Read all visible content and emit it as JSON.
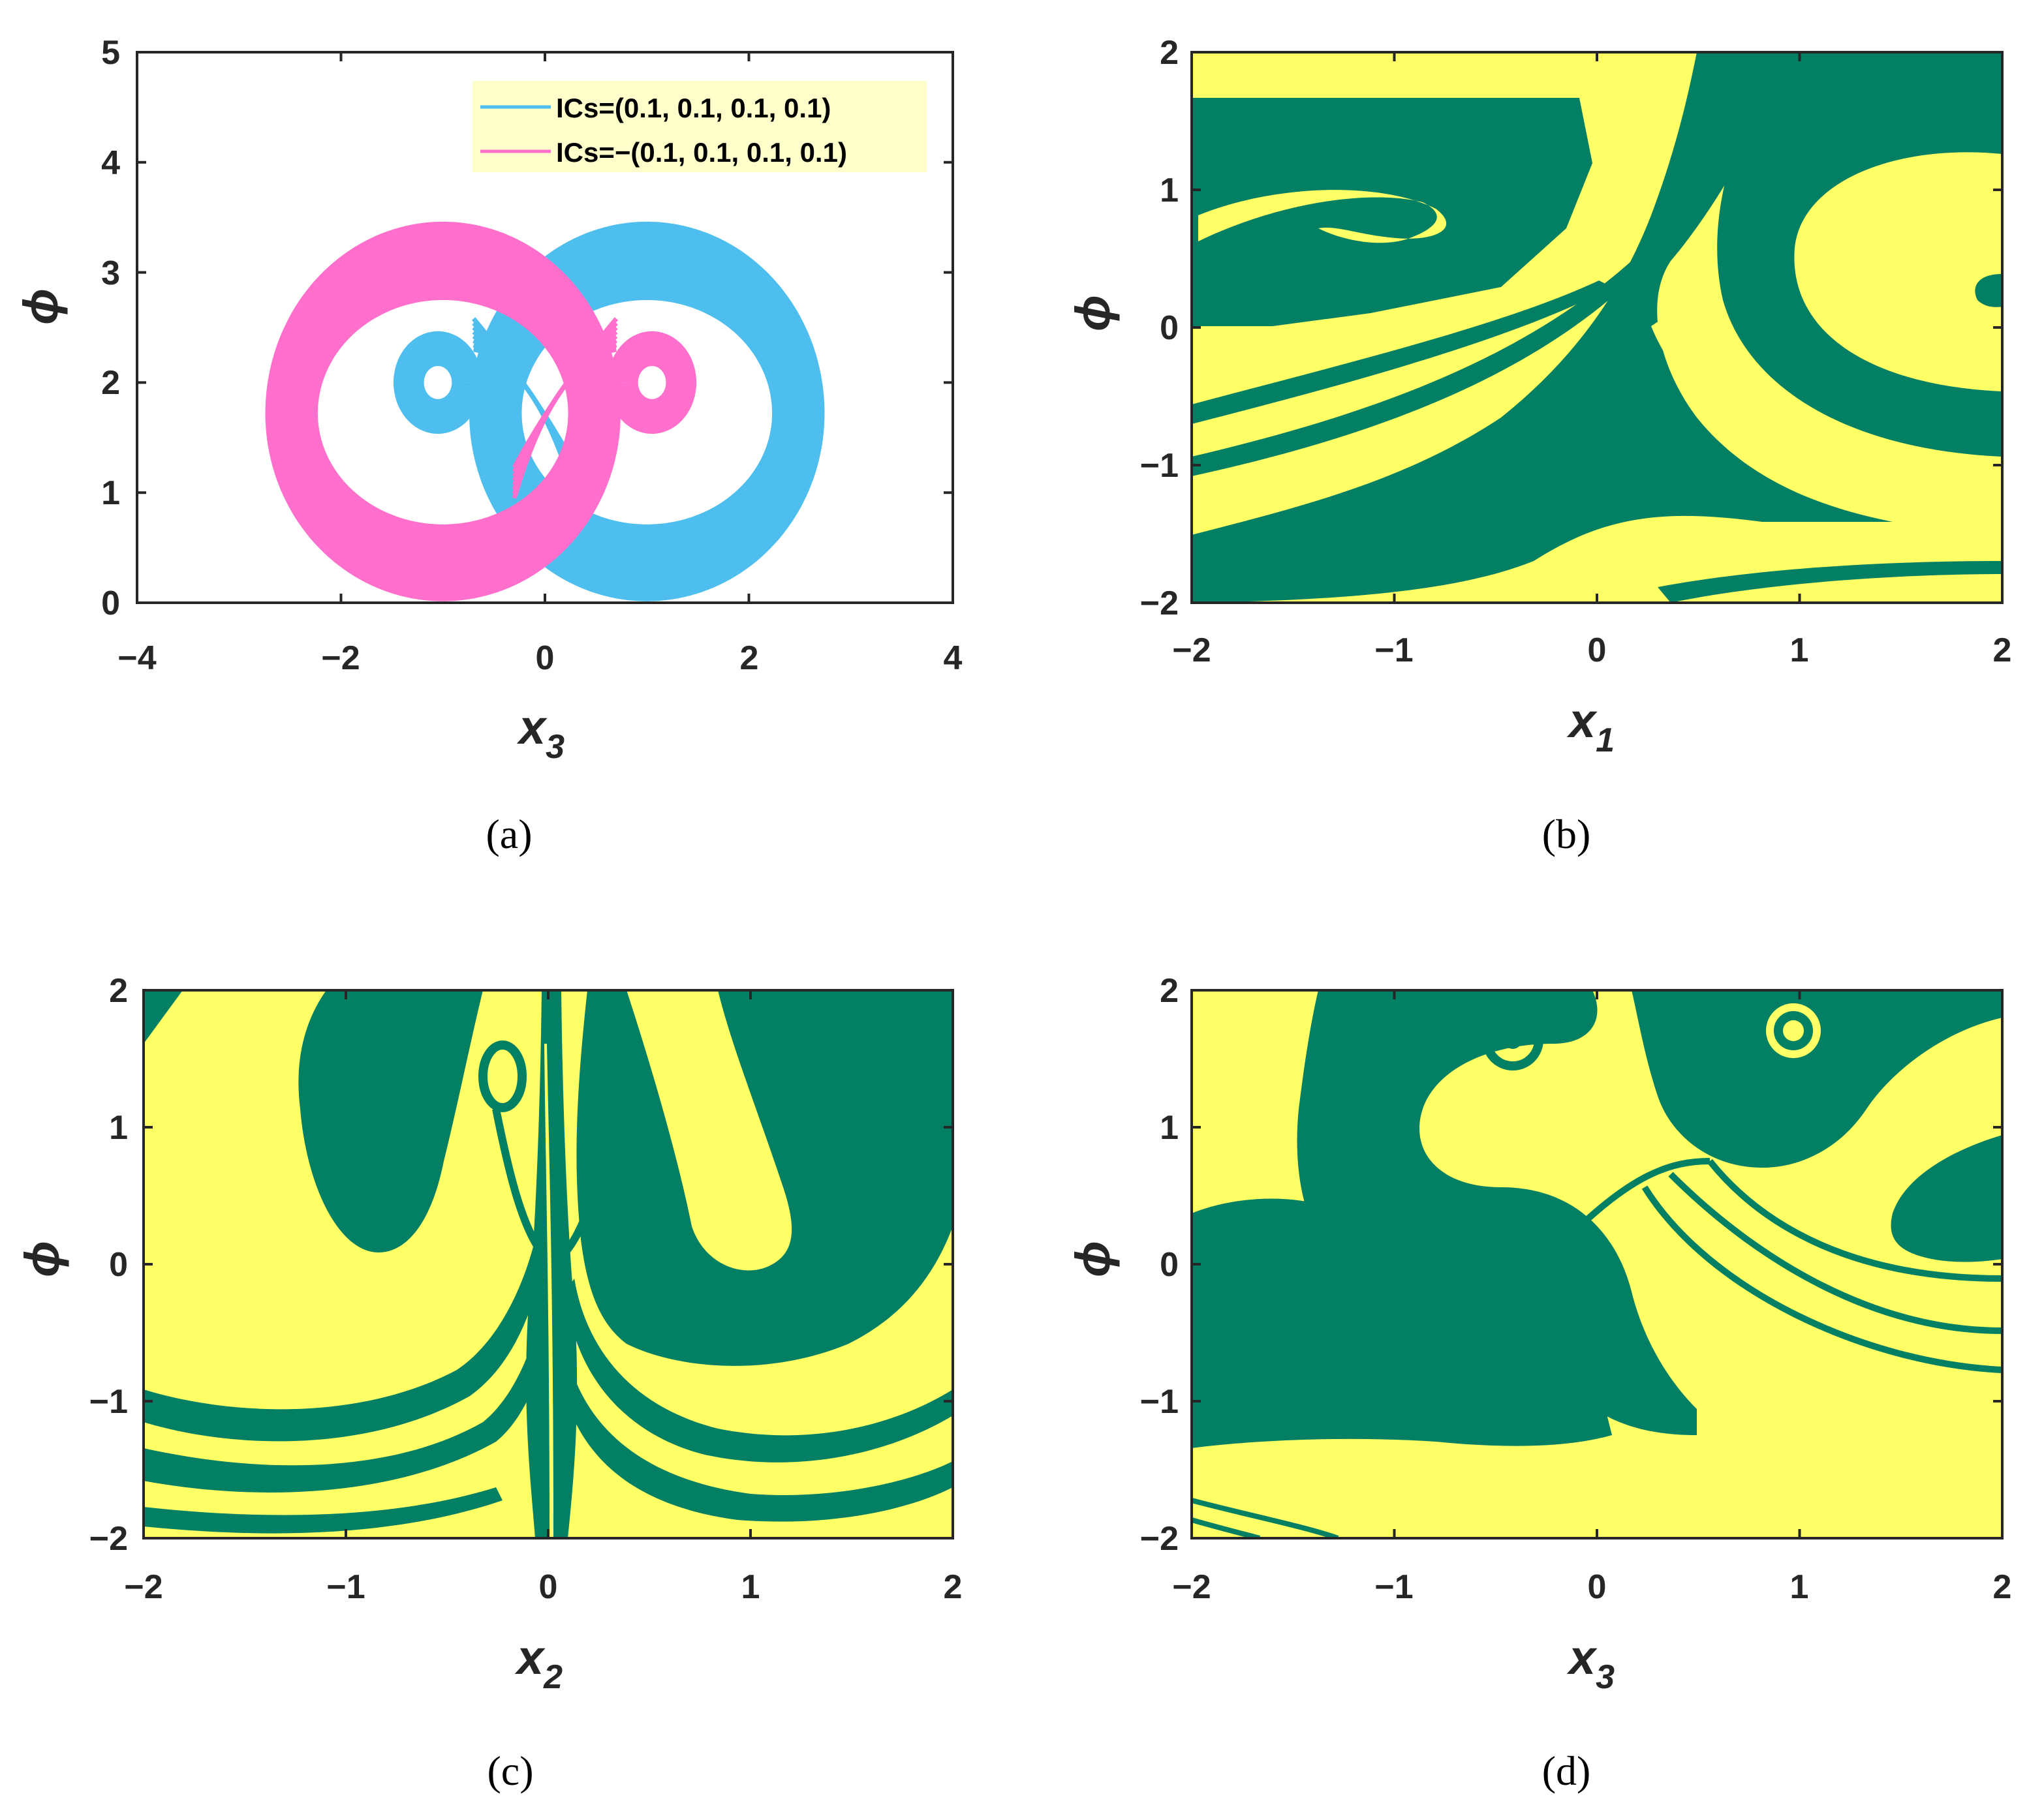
{
  "colors": {
    "basin_green": "#037f63",
    "basin_yellow": "#ffff66",
    "series_blue": "#4dbeee",
    "series_pink": "#ff6fcb",
    "legend_bg": "#ffffcc",
    "axis": "#262626"
  },
  "chart_data": [
    {
      "id": "a",
      "type": "line",
      "caption": "(a)",
      "xlabel": "x",
      "xlabel_sub": "3",
      "ylabel": "ϕ",
      "xlim": [
        -4,
        4
      ],
      "ylim": [
        0,
        5
      ],
      "xticks": [
        "−4",
        "−2",
        "0",
        "2",
        "4"
      ],
      "yticks": [
        "0",
        "1",
        "2",
        "3",
        "4",
        "5"
      ],
      "legend_position": "top-right",
      "series": [
        {
          "name": "ICs=(0.1, 0.1, 0.1, 0.1)",
          "color": "#4dbeee",
          "sign": 1
        },
        {
          "name": "ICs=−(0.1, 0.1, 0.1, 0.1)",
          "color": "#ff6fcb",
          "sign": -1
        }
      ],
      "attractor_shape": {
        "outer_lobe_center_x": 1.0,
        "outer_lobe_center_y": 1.72,
        "outer_lobe_radius_x": [
          1.25,
          1.72
        ],
        "outer_lobe_radius_y": [
          1.05,
          1.72
        ],
        "inner_loop_center_x": -1.05,
        "inner_loop_center_y": 2.0,
        "inner_loop_radius": [
          0.12,
          0.32
        ]
      }
    },
    {
      "id": "b",
      "type": "heatmap",
      "caption": "(b)",
      "xlabel": "x",
      "xlabel_sub": "1",
      "ylabel": "ϕ",
      "xlim": [
        -2,
        2
      ],
      "ylim": [
        -2,
        2
      ],
      "xticks": [
        "−2",
        "−1",
        "0",
        "1",
        "2"
      ],
      "yticks": [
        "−2",
        "−1",
        "0",
        "1",
        "2"
      ],
      "basin_values": [
        "green",
        "yellow"
      ]
    },
    {
      "id": "c",
      "type": "heatmap",
      "caption": "(c)",
      "xlabel": "x",
      "xlabel_sub": "2",
      "ylabel": "ϕ",
      "xlim": [
        -2,
        2
      ],
      "ylim": [
        -2,
        2
      ],
      "xticks": [
        "−2",
        "−1",
        "0",
        "1",
        "2"
      ],
      "yticks": [
        "−2",
        "−1",
        "0",
        "1",
        "2"
      ],
      "basin_values": [
        "green",
        "yellow"
      ]
    },
    {
      "id": "d",
      "type": "heatmap",
      "caption": "(d)",
      "xlabel": "x",
      "xlabel_sub": "3",
      "ylabel": "ϕ",
      "xlim": [
        -2,
        2
      ],
      "ylim": [
        -2,
        2
      ],
      "xticks": [
        "−2",
        "−1",
        "0",
        "1",
        "2"
      ],
      "yticks": [
        "−2",
        "−1",
        "0",
        "1",
        "2"
      ],
      "basin_values": [
        "green",
        "yellow"
      ]
    }
  ]
}
